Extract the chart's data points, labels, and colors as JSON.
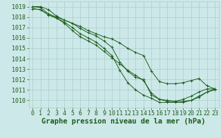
{
  "bg_color": "#cde8e8",
  "grid_color": "#aacccc",
  "line_color": "#1a5c1a",
  "xlabel": "Graphe pression niveau de la mer (hPa)",
  "xlabel_fontsize": 7.5,
  "tick_fontsize": 6.0,
  "ylim": [
    1009.3,
    1019.5
  ],
  "xlim": [
    -0.5,
    23.5
  ],
  "yticks": [
    1010,
    1011,
    1012,
    1013,
    1014,
    1015,
    1016,
    1017,
    1018,
    1019
  ],
  "xticks": [
    0,
    1,
    2,
    3,
    4,
    5,
    6,
    7,
    8,
    9,
    10,
    11,
    12,
    13,
    14,
    15,
    16,
    17,
    18,
    19,
    20,
    21,
    22,
    23
  ],
  "series": [
    [
      1019.0,
      1018.9,
      1018.3,
      1018.0,
      1017.7,
      1017.4,
      1016.9,
      1016.5,
      1016.2,
      1015.7,
      1015.1,
      1013.7,
      1012.8,
      1012.2,
      1012.0,
      1010.5,
      1010.1,
      1010.0,
      1009.9,
      1009.9,
      1010.0,
      1010.3,
      1010.8,
      1011.0
    ],
    [
      1018.8,
      1018.7,
      1018.2,
      1017.9,
      1017.5,
      1017.0,
      1016.4,
      1016.0,
      1015.6,
      1015.0,
      1014.3,
      1012.9,
      1011.7,
      1011.0,
      1010.5,
      1010.2,
      1009.8,
      1009.8,
      1009.8,
      1009.8,
      1010.0,
      1010.4,
      1010.8,
      1011.1
    ],
    [
      1018.8,
      1018.7,
      1018.2,
      1017.9,
      1017.4,
      1016.7,
      1016.1,
      1015.7,
      1015.3,
      1014.7,
      1014.1,
      1013.5,
      1012.9,
      1012.4,
      1011.9,
      1010.7,
      1010.1,
      1009.9,
      1009.9,
      1010.1,
      1010.4,
      1010.8,
      1011.1,
      1011.1
    ],
    [
      1019.0,
      1019.0,
      1018.7,
      1018.1,
      1017.7,
      1017.4,
      1017.1,
      1016.7,
      1016.4,
      1016.1,
      1015.9,
      1015.5,
      1015.0,
      1014.6,
      1014.3,
      1012.8,
      1011.8,
      1011.6,
      1011.6,
      1011.7,
      1011.9,
      1012.1,
      1011.4,
      1011.1
    ]
  ]
}
